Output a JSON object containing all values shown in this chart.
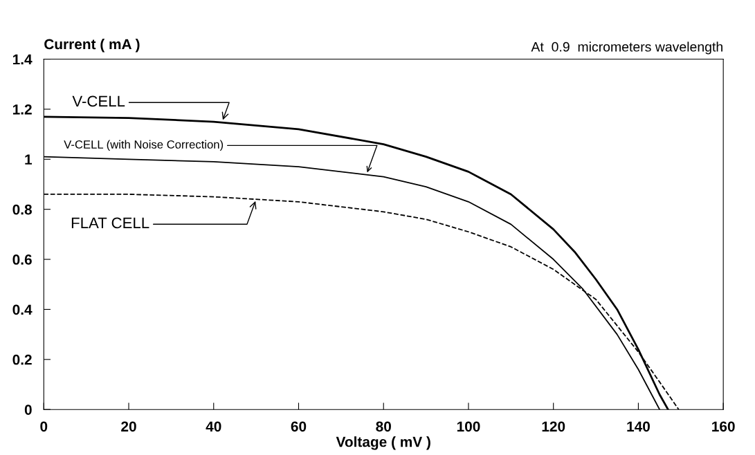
{
  "chart_data": {
    "type": "line",
    "title": "At  0.9  micrometers wavelength",
    "xlabel": "Voltage ( mV )",
    "ylabel": "Current ( mA )",
    "xlim": [
      0,
      160
    ],
    "xticks": [
      0,
      20,
      40,
      60,
      80,
      100,
      120,
      140,
      160
    ],
    "ylim": [
      0,
      1.4
    ],
    "yticks": [
      0,
      0.2,
      0.4,
      0.6,
      0.8,
      1,
      1.2,
      1.4
    ],
    "grid": false,
    "marker": "none",
    "series": [
      {
        "color": "#000000",
        "line_style": "solid",
        "x": [
          0,
          20,
          40,
          60,
          80,
          90,
          100,
          110,
          120,
          125,
          130,
          135,
          140,
          145,
          147
        ],
        "values": [
          1.17,
          1.165,
          1.15,
          1.12,
          1.06,
          1.01,
          0.95,
          0.86,
          0.72,
          0.63,
          0.52,
          0.4,
          0.24,
          0.06,
          0
        ]
      },
      {
        "color": "#000000",
        "line_style": "solid",
        "x": [
          0,
          20,
          40,
          60,
          80,
          90,
          100,
          110,
          120,
          127,
          135,
          140,
          145
        ],
        "values": [
          1.01,
          1.0,
          0.99,
          0.97,
          0.93,
          0.89,
          0.83,
          0.74,
          0.6,
          0.48,
          0.3,
          0.16,
          0
        ]
      },
      {
        "color": "#000000",
        "line_style": "dashed",
        "x": [
          0,
          20,
          40,
          60,
          80,
          90,
          100,
          110,
          120,
          130,
          140,
          145,
          149.5
        ],
        "values": [
          0.86,
          0.86,
          0.85,
          0.83,
          0.79,
          0.76,
          0.71,
          0.65,
          0.56,
          0.44,
          0.23,
          0.11,
          0
        ]
      }
    ],
    "annotations": [
      {
        "text": "V-CELL",
        "x": 42,
        "y": 1.15
      },
      {
        "text": "V-CELL (with Noise Correction)",
        "x": 76,
        "y": 0.94
      },
      {
        "text": "FLAT CELL",
        "x": 50,
        "y": 0.84
      }
    ]
  }
}
